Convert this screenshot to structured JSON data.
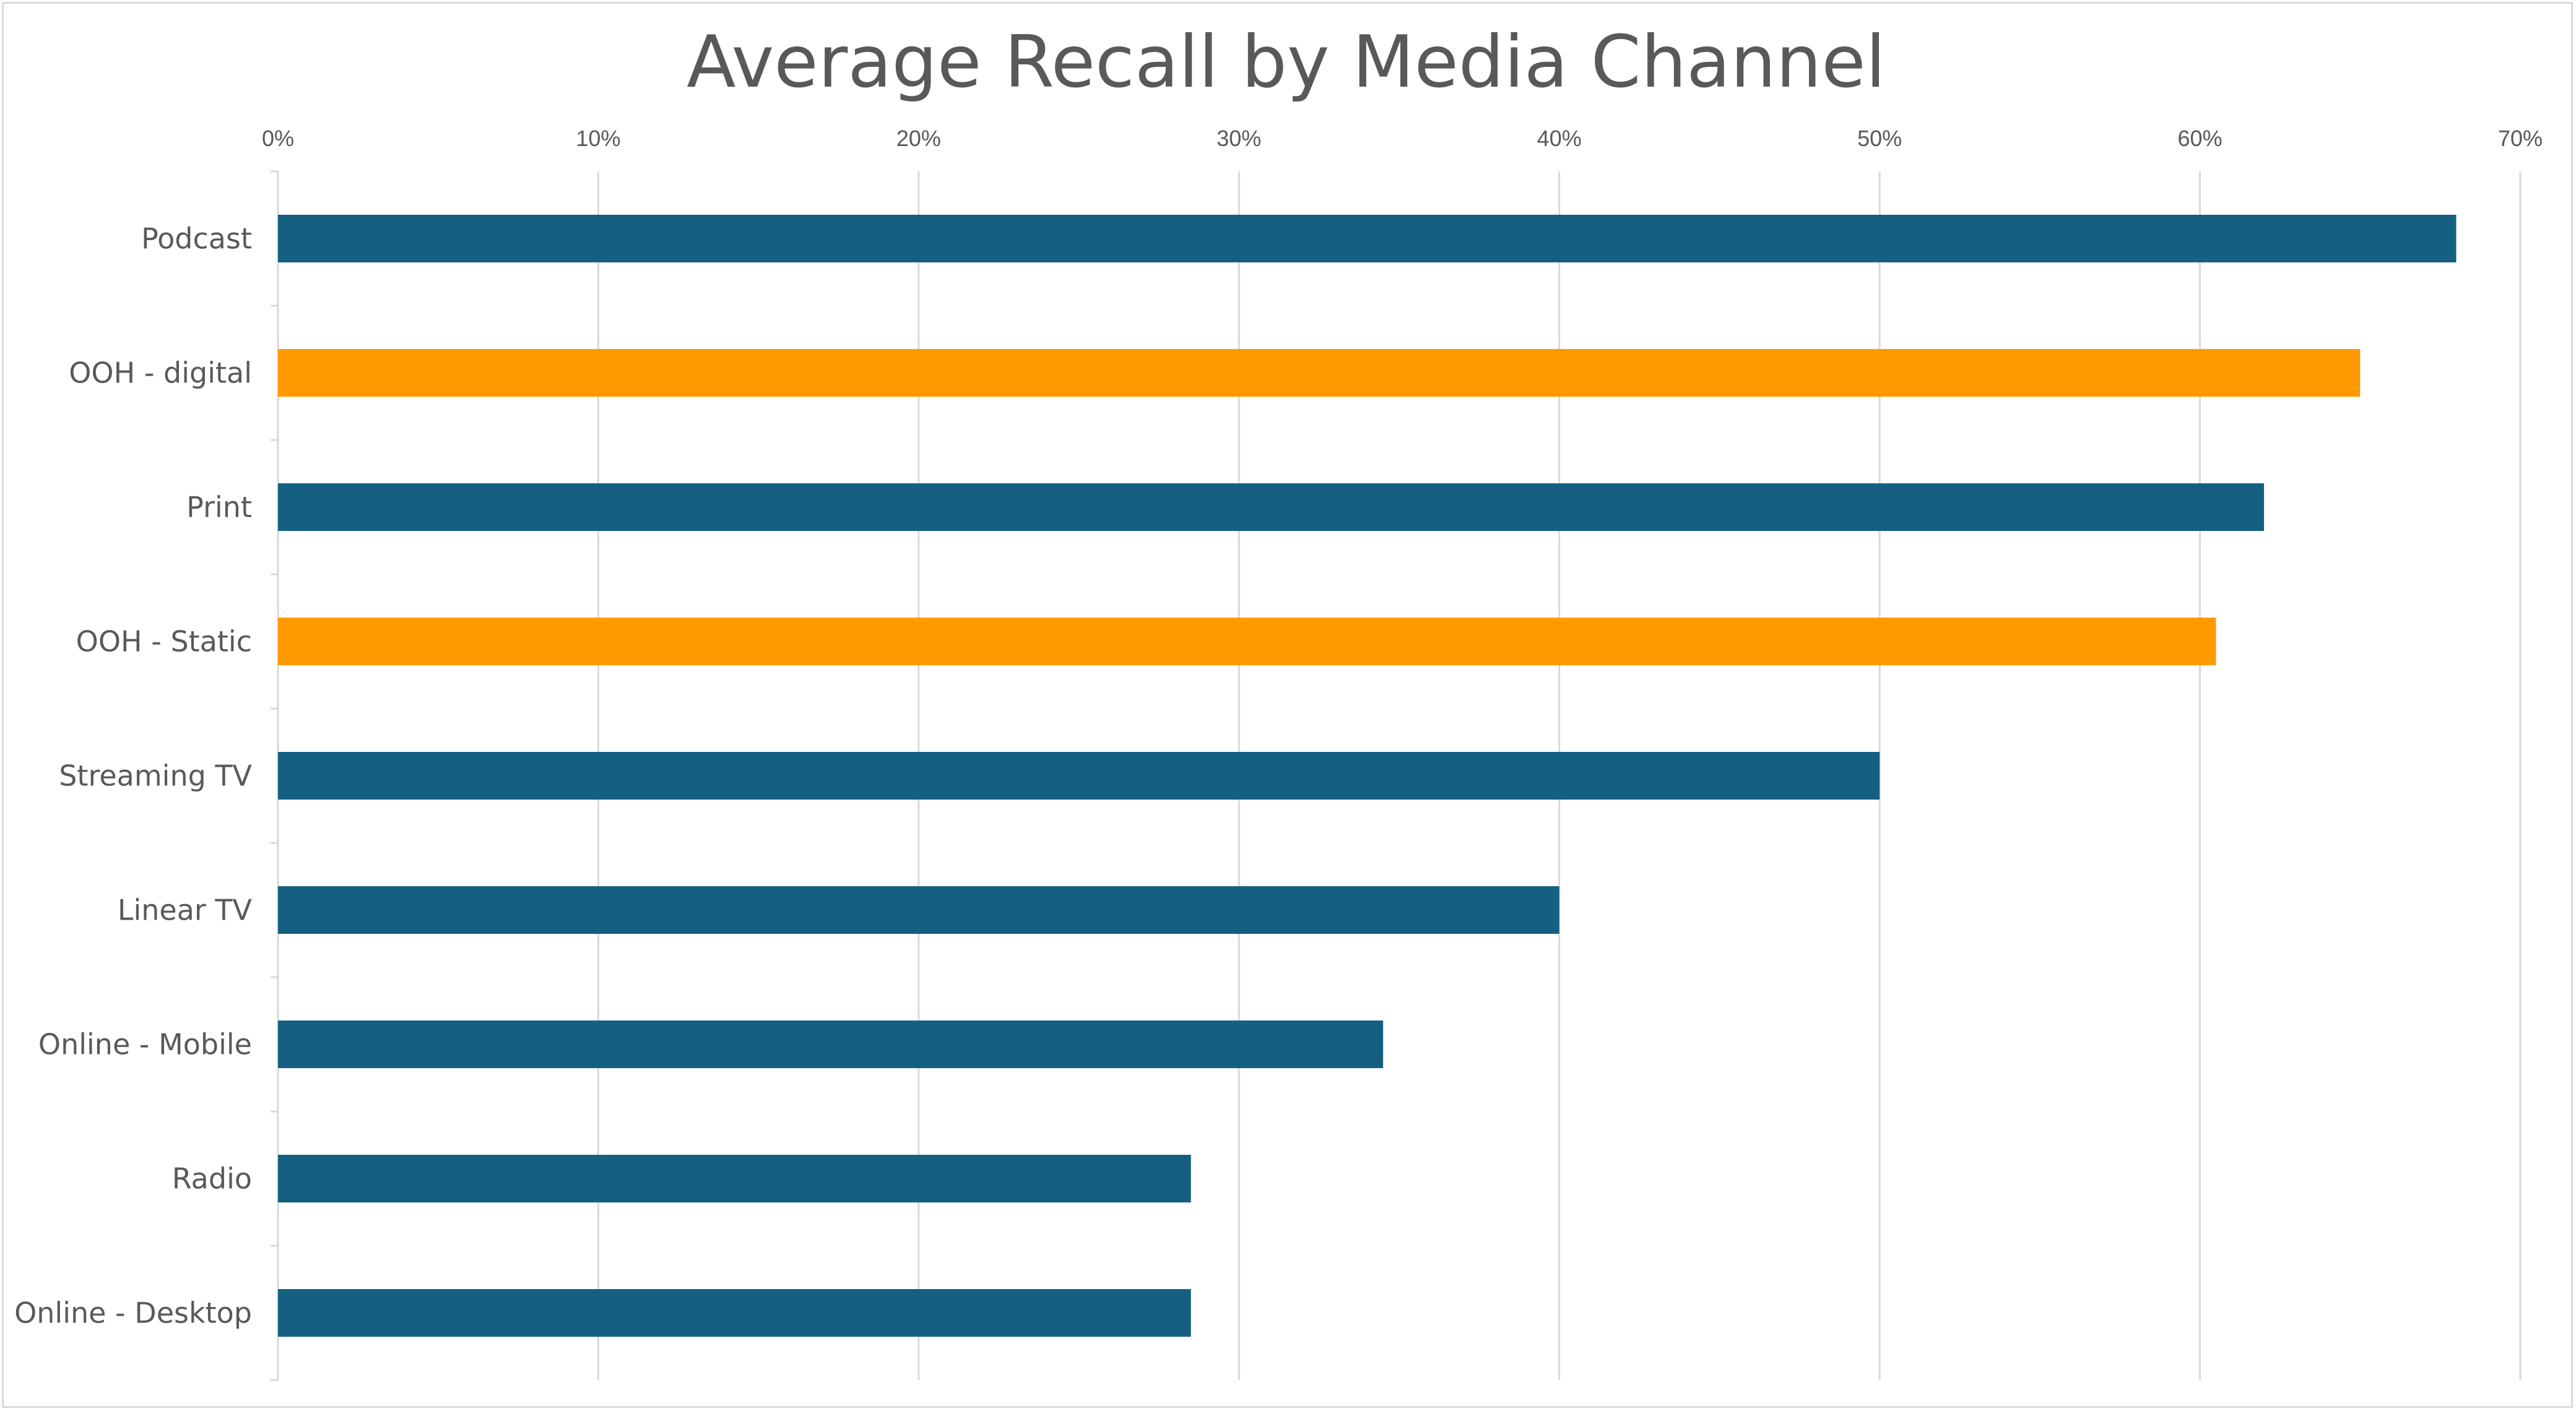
{
  "chart_data": {
    "type": "bar",
    "orientation": "horizontal",
    "title": "Average Recall by Media Channel",
    "xlabel": "",
    "ylabel": "",
    "xlim": [
      0,
      70
    ],
    "x_ticks": [
      "0%",
      "10%",
      "20%",
      "30%",
      "40%",
      "50%",
      "60%",
      "70%"
    ],
    "x_axis_position": "top",
    "grid": true,
    "legend": "none",
    "categories": [
      "Podcast",
      "OOH - digital",
      "Print",
      "OOH - Static",
      "Streaming TV",
      "Linear TV",
      "Online - Mobile",
      "Radio",
      "Online - Desktop"
    ],
    "values": [
      68,
      65,
      62,
      60.5,
      50,
      40,
      34.5,
      28.5,
      28.5
    ],
    "bar_colors": [
      "#156082",
      "#FF9900",
      "#156082",
      "#FF9900",
      "#156082",
      "#156082",
      "#156082",
      "#156082",
      "#156082"
    ],
    "gridline_color": "#d9d9d9",
    "text_color": "#595959"
  }
}
